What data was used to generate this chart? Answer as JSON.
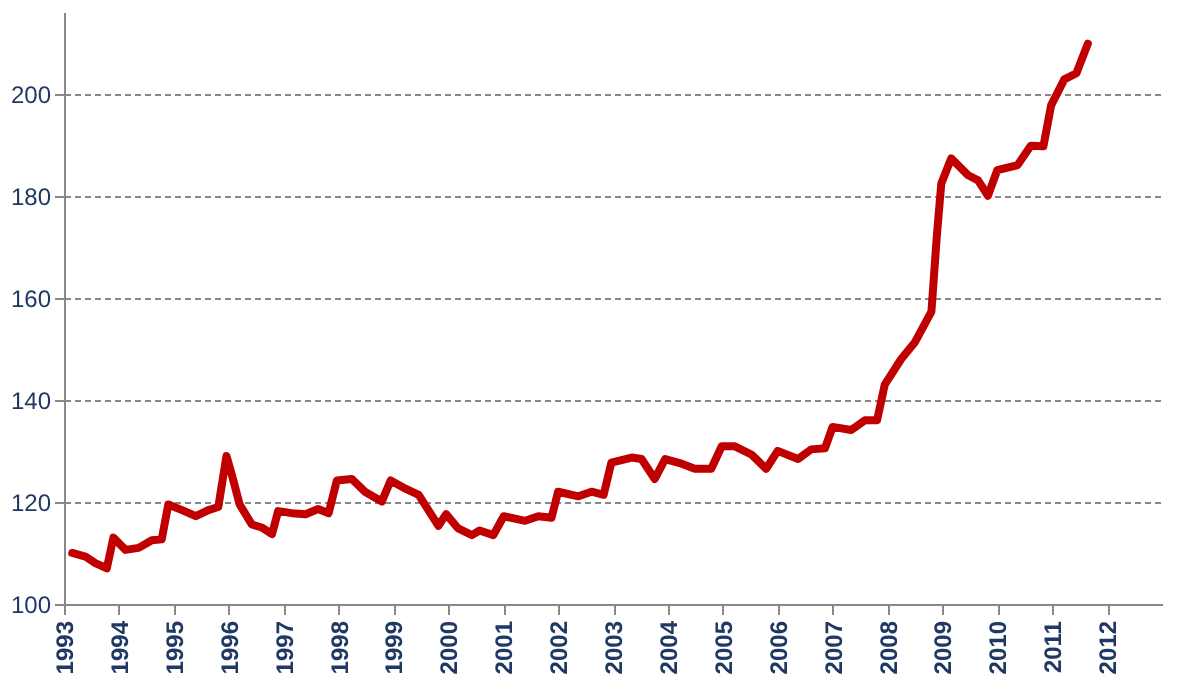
{
  "chart_data": {
    "type": "line",
    "xlim": [
      1993,
      2013
    ],
    "xticks": [
      1993,
      1994,
      1995,
      1996,
      1997,
      1998,
      1999,
      2000,
      2001,
      2002,
      2003,
      2004,
      2005,
      2006,
      2007,
      2008,
      2009,
      2010,
      2011,
      2012
    ],
    "ylim": [
      100,
      216
    ],
    "yticks": [
      100,
      120,
      140,
      160,
      180,
      200
    ],
    "grid": "y",
    "line_style": "solid",
    "series": [
      {
        "color": "#c00000",
        "x": [
          1993.15,
          1993.39,
          1993.57,
          1993.78,
          1993.9,
          1994.12,
          1994.36,
          1994.6,
          1994.78,
          1994.9,
          1995.15,
          1995.4,
          1995.63,
          1995.81,
          1995.96,
          1996.06,
          1996.2,
          1996.42,
          1996.6,
          1996.79,
          1996.9,
          1997.15,
          1997.4,
          1997.63,
          1997.82,
          1997.97,
          1998.24,
          1998.48,
          1998.79,
          1998.95,
          1999.22,
          1999.46,
          1999.82,
          1999.96,
          2000.18,
          2000.43,
          2000.57,
          2000.82,
          2001.01,
          2001.4,
          2001.64,
          2001.88,
          2002.0,
          2002.37,
          2002.61,
          2002.83,
          2002.97,
          2003.34,
          2003.52,
          2003.76,
          2003.95,
          2004.25,
          2004.49,
          2004.79,
          2004.98,
          2005.22,
          2005.52,
          2005.79,
          2006.0,
          2006.37,
          2006.61,
          2006.86,
          2007.0,
          2007.34,
          2007.59,
          2007.81,
          2007.95,
          2008.25,
          2008.5,
          2008.8,
          2008.9,
          2008.98,
          2009.16,
          2009.47,
          2009.65,
          2009.83,
          2010.0,
          2010.37,
          2010.61,
          2010.84,
          2010.98,
          2011.22,
          2011.44,
          2011.65
        ],
        "values": [
          110,
          109.3,
          108,
          107,
          113,
          110.6,
          111,
          112.5,
          112.7,
          119.5,
          118.4,
          117.2,
          118.4,
          119,
          129,
          125.2,
          119.5,
          115.6,
          115,
          113.7,
          118.2,
          117.8,
          117.6,
          118.6,
          117.8,
          124.2,
          124.5,
          122,
          120.1,
          124.2,
          122.6,
          121.4,
          115.3,
          117.6,
          114.8,
          113.5,
          114.4,
          113.5,
          117.2,
          116.3,
          117.2,
          116.9,
          122,
          121.1,
          122,
          121.4,
          127.7,
          128.7,
          128.4,
          124.5,
          128.4,
          127.5,
          126.5,
          126.5,
          130.9,
          130.9,
          129.3,
          126.5,
          130,
          128.4,
          130.3,
          130.5,
          134.7,
          134.1,
          136,
          136,
          143,
          148,
          151.3,
          157.3,
          172.3,
          182.4,
          187.3,
          184,
          183,
          180,
          185,
          186,
          189.8,
          189.7,
          197.7,
          202.8,
          204,
          209.8
        ]
      }
    ]
  }
}
